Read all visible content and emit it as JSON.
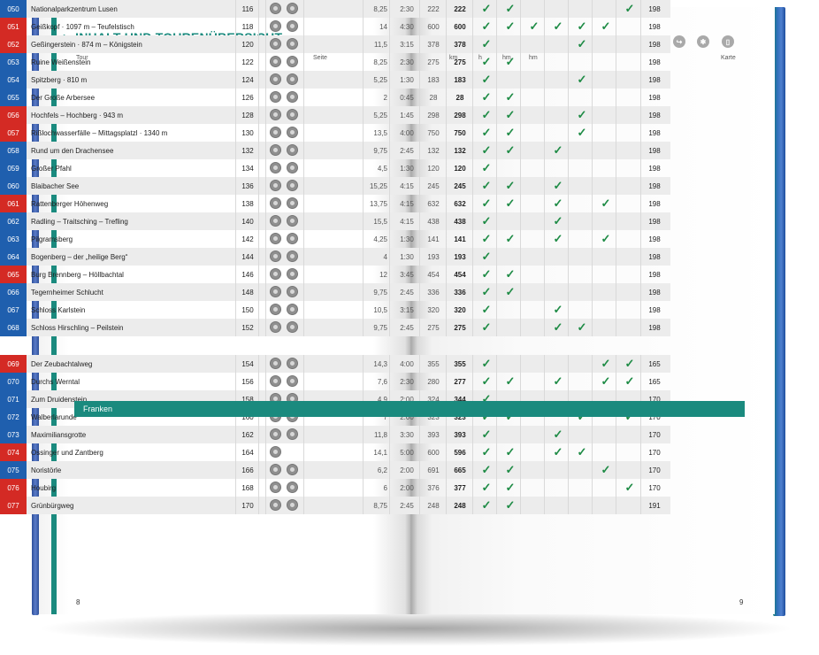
{
  "title": "INHALT UND TOURENÜBERSICHT",
  "headers": {
    "tour": "Tour",
    "seite": "Seite",
    "km": "km",
    "h": "h",
    "hm_up": "hm",
    "hm_down": "hm",
    "karte": "Karte"
  },
  "header_icons": [
    "distance-icon",
    "time-icon",
    "ascent-icon",
    "descent-icon",
    "parking-icon",
    "bus-icon",
    "cable-car-icon",
    "restaurant-icon",
    "summit-icon",
    "shelter-icon",
    "winter-icon",
    "map-icon"
  ],
  "header_icon_glyphs": [
    "↔",
    "◷",
    "↗",
    "↘",
    "P",
    "▣",
    "⌂",
    "Ψ",
    "▲",
    "↪",
    "✱",
    "▯"
  ],
  "check_glyph": "✓",
  "section_title": "Franken",
  "page_left": "8",
  "page_right": "9",
  "colors": {
    "blue": "#1f5fae",
    "red": "#d42a24",
    "teal": "#1a8a7e",
    "check": "#1e8b45"
  },
  "rows": [
    {
      "nr": "050",
      "color": "blue",
      "name": "Nationalparkzentrum Lusen",
      "seite": "116",
      "ic2": true,
      "km": "8,25",
      "h": "2:30",
      "hm1": "222",
      "hm2": "222",
      "checks": [
        1,
        1,
        0,
        0,
        0,
        0,
        1
      ],
      "karte": "198"
    },
    {
      "nr": "051",
      "color": "red",
      "name": "Geißkopf · 1097 m – Teufelstisch",
      "seite": "118",
      "ic2": true,
      "km": "14",
      "h": "4:30",
      "hm1": "600",
      "hm2": "600",
      "checks": [
        1,
        1,
        1,
        1,
        1,
        1,
        0
      ],
      "karte": "198"
    },
    {
      "nr": "052",
      "color": "red",
      "name": "Geßingerstein · 874 m – Königstein",
      "seite": "120",
      "ic2": true,
      "km": "11,5",
      "h": "3:15",
      "hm1": "378",
      "hm2": "378",
      "checks": [
        1,
        0,
        0,
        0,
        1,
        0,
        0
      ],
      "karte": "198"
    },
    {
      "nr": "053",
      "color": "blue",
      "name": "Ruine Weißenstein",
      "seite": "122",
      "ic2": true,
      "km": "8,25",
      "h": "2:30",
      "hm1": "275",
      "hm2": "275",
      "checks": [
        1,
        1,
        0,
        0,
        0,
        0,
        0
      ],
      "karte": "198"
    },
    {
      "nr": "054",
      "color": "blue",
      "name": "Spitzberg · 810 m",
      "seite": "124",
      "ic2": true,
      "km": "5,25",
      "h": "1:30",
      "hm1": "183",
      "hm2": "183",
      "checks": [
        1,
        0,
        0,
        0,
        1,
        0,
        0
      ],
      "karte": "198"
    },
    {
      "nr": "055",
      "color": "blue",
      "name": "Der Große Arbersee",
      "seite": "126",
      "ic2": true,
      "km": "2",
      "h": "0:45",
      "hm1": "28",
      "hm2": "28",
      "checks": [
        1,
        1,
        0,
        0,
        0,
        0,
        0
      ],
      "karte": "198"
    },
    {
      "nr": "056",
      "color": "red",
      "name": "Hochfels – Hochberg · 943 m",
      "seite": "128",
      "ic2": true,
      "km": "5,25",
      "h": "1:45",
      "hm1": "298",
      "hm2": "298",
      "checks": [
        1,
        1,
        0,
        0,
        1,
        0,
        0
      ],
      "karte": "198"
    },
    {
      "nr": "057",
      "color": "red",
      "name": "Rißlochwasserfälle – Mittagsplatzl · 1340 m",
      "seite": "130",
      "ic2": true,
      "km": "13,5",
      "h": "4:00",
      "hm1": "750",
      "hm2": "750",
      "checks": [
        1,
        1,
        0,
        0,
        1,
        0,
        0
      ],
      "karte": "198"
    },
    {
      "nr": "058",
      "color": "blue",
      "name": "Rund um den Drachensee",
      "seite": "132",
      "ic2": true,
      "km": "9,75",
      "h": "2:45",
      "hm1": "132",
      "hm2": "132",
      "checks": [
        1,
        1,
        0,
        1,
        0,
        0,
        0
      ],
      "karte": "198"
    },
    {
      "nr": "059",
      "color": "blue",
      "name": "Großer Pfahl",
      "seite": "134",
      "ic2": true,
      "km": "4,5",
      "h": "1:30",
      "hm1": "120",
      "hm2": "120",
      "checks": [
        1,
        0,
        0,
        0,
        0,
        0,
        0
      ],
      "karte": "198"
    },
    {
      "nr": "060",
      "color": "blue",
      "name": "Blaibacher See",
      "seite": "136",
      "ic2": true,
      "km": "15,25",
      "h": "4:15",
      "hm1": "245",
      "hm2": "245",
      "checks": [
        1,
        1,
        0,
        1,
        0,
        0,
        0
      ],
      "karte": "198"
    },
    {
      "nr": "061",
      "color": "red",
      "name": "Rattenberger Höhenweg",
      "seite": "138",
      "ic2": true,
      "km": "13,75",
      "h": "4:15",
      "hm1": "632",
      "hm2": "632",
      "checks": [
        1,
        1,
        0,
        1,
        0,
        1,
        0
      ],
      "karte": "198"
    },
    {
      "nr": "062",
      "color": "blue",
      "name": "Radling – Traitsching – Trefling",
      "seite": "140",
      "ic2": true,
      "km": "15,5",
      "h": "4:15",
      "hm1": "438",
      "hm2": "438",
      "checks": [
        1,
        0,
        0,
        1,
        0,
        0,
        0
      ],
      "karte": "198"
    },
    {
      "nr": "063",
      "color": "blue",
      "name": "Pilgramsberg",
      "seite": "142",
      "ic2": true,
      "km": "4,25",
      "h": "1:30",
      "hm1": "141",
      "hm2": "141",
      "checks": [
        1,
        1,
        0,
        1,
        0,
        1,
        0
      ],
      "karte": "198"
    },
    {
      "nr": "064",
      "color": "blue",
      "name": "Bogenberg – der „heilige Berg“",
      "seite": "144",
      "ic2": true,
      "km": "4",
      "h": "1:30",
      "hm1": "193",
      "hm2": "193",
      "checks": [
        1,
        0,
        0,
        0,
        0,
        0,
        0
      ],
      "karte": "198"
    },
    {
      "nr": "065",
      "color": "red",
      "name": "Burg Brennberg – Höllbachtal",
      "seite": "146",
      "ic2": true,
      "km": "12",
      "h": "3:45",
      "hm1": "454",
      "hm2": "454",
      "checks": [
        1,
        1,
        0,
        0,
        0,
        0,
        0
      ],
      "karte": "198"
    },
    {
      "nr": "066",
      "color": "blue",
      "name": "Tegernheimer Schlucht",
      "seite": "148",
      "ic2": true,
      "km": "9,75",
      "h": "2:45",
      "hm1": "336",
      "hm2": "336",
      "checks": [
        1,
        1,
        0,
        0,
        0,
        0,
        0
      ],
      "karte": "198"
    },
    {
      "nr": "067",
      "color": "blue",
      "name": "Schloss Karlstein",
      "seite": "150",
      "ic2": true,
      "km": "10,5",
      "h": "3:15",
      "hm1": "320",
      "hm2": "320",
      "checks": [
        1,
        0,
        0,
        1,
        0,
        0,
        0
      ],
      "karte": "198"
    },
    {
      "nr": "068",
      "color": "blue",
      "name": "Schloss Hirschling – Peilstein",
      "seite": "152",
      "ic2": true,
      "km": "9,75",
      "h": "2:45",
      "hm1": "275",
      "hm2": "275",
      "checks": [
        1,
        0,
        0,
        1,
        1,
        0,
        0
      ],
      "karte": "198"
    }
  ],
  "rows2": [
    {
      "nr": "069",
      "color": "red",
      "name": "Der Zeubachtalweg",
      "seite": "154",
      "ic2": true,
      "km": "14,3",
      "h": "4:00",
      "hm1": "355",
      "hm2": "355",
      "checks": [
        1,
        0,
        0,
        0,
        0,
        1,
        1
      ],
      "karte": "165"
    },
    {
      "nr": "070",
      "color": "blue",
      "name": "Durchs Werntal",
      "seite": "156",
      "ic2": true,
      "km": "7,6",
      "h": "2:30",
      "hm1": "280",
      "hm2": "277",
      "checks": [
        1,
        1,
        0,
        1,
        0,
        1,
        1
      ],
      "karte": "165"
    },
    {
      "nr": "071",
      "color": "blue",
      "name": "Zum Druidenstein",
      "seite": "158",
      "ic2": true,
      "km": "4,9",
      "h": "2:00",
      "hm1": "324",
      "hm2": "344",
      "checks": [
        1,
        0,
        0,
        0,
        0,
        0,
        0
      ],
      "karte": "170"
    },
    {
      "nr": "072",
      "color": "blue",
      "name": "Walberlarunde",
      "seite": "160",
      "ic2": true,
      "km": "7",
      "h": "2:00",
      "hm1": "323",
      "hm2": "323",
      "checks": [
        1,
        1,
        0,
        0,
        1,
        0,
        1
      ],
      "karte": "170"
    },
    {
      "nr": "073",
      "color": "blue",
      "name": "Maximiliansgrotte",
      "seite": "162",
      "ic2": true,
      "km": "11,8",
      "h": "3:30",
      "hm1": "393",
      "hm2": "393",
      "checks": [
        1,
        0,
        0,
        1,
        0,
        0,
        0
      ],
      "karte": "170"
    },
    {
      "nr": "074",
      "color": "red",
      "name": "Ossinger und Zantberg",
      "seite": "164",
      "ic2": false,
      "km": "14,1",
      "h": "5:00",
      "hm1": "600",
      "hm2": "596",
      "checks": [
        1,
        1,
        0,
        1,
        1,
        0,
        0
      ],
      "karte": "170"
    },
    {
      "nr": "075",
      "color": "blue",
      "name": "Noristörle",
      "seite": "166",
      "ic2": true,
      "km": "6,2",
      "h": "2:00",
      "hm1": "691",
      "hm2": "665",
      "checks": [
        1,
        1,
        0,
        0,
        0,
        1,
        0
      ],
      "karte": "170"
    },
    {
      "nr": "076",
      "color": "red",
      "name": "Houbirg",
      "seite": "168",
      "ic2": true,
      "km": "6",
      "h": "2:00",
      "hm1": "376",
      "hm2": "377",
      "checks": [
        1,
        1,
        0,
        0,
        0,
        0,
        1
      ],
      "karte": "170"
    },
    {
      "nr": "077",
      "color": "red",
      "name": "Grünbürgweg",
      "seite": "170",
      "ic2": true,
      "km": "8,75",
      "h": "2:45",
      "hm1": "248",
      "hm2": "248",
      "checks": [
        1,
        1,
        0,
        0,
        0,
        0,
        0
      ],
      "karte": "191"
    }
  ]
}
